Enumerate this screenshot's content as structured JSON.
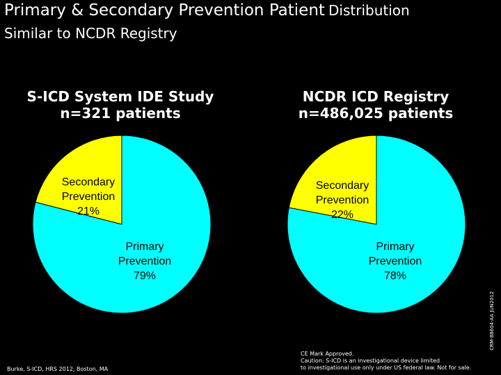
{
  "header": {
    "title_main": "Primary & Secondary Prevention Patient",
    "title_small": "Distribution",
    "subtitle": "Similar to NCDR Registry"
  },
  "chart_data": [
    {
      "type": "pie",
      "title_line1": "S-ICD System IDE Study",
      "title_line2": "n=321 patients",
      "slices": [
        {
          "label_line1": "Secondary",
          "label_line2": "Prevention",
          "pct_label": "21%",
          "value": 21,
          "color": "#ffff00"
        },
        {
          "label_line1": "Primary",
          "label_line2": "Prevention",
          "pct_label": "79%",
          "value": 79,
          "color": "#00ffff"
        }
      ]
    },
    {
      "type": "pie",
      "title_line1": "NCDR ICD Registry",
      "title_line2": "n=486,025 patients",
      "slices": [
        {
          "label_line1": "Secondary",
          "label_line2": "Prevention",
          "pct_label": "22%",
          "value": 22,
          "color": "#ffff00"
        },
        {
          "label_line1": "Primary",
          "label_line2": "Prevention",
          "pct_label": "78%",
          "value": 78,
          "color": "#00ffff"
        }
      ]
    }
  ],
  "footer": {
    "citation": "Burke, S-ICD, HRS 2012, Boston, MA",
    "disclaimer_line1": "CE Mark Approved.",
    "disclaimer_line2": "Caution: S-ICD is an investigational device limited",
    "disclaimer_line3": "to investigational use only under US federal law. Not for sale.",
    "side_code": "CRM-88604-AA JUN2012"
  }
}
